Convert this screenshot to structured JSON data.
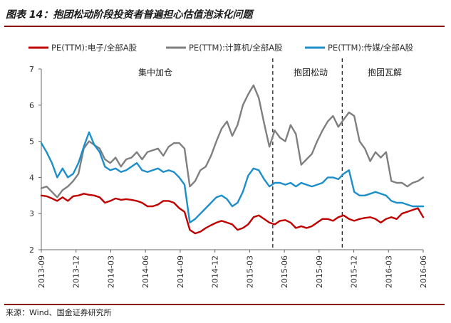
{
  "title": "图表 14：抱团松动阶段投资者普遍担心估值泡沫化问题",
  "source": "来源：Wind、国金证券研究所",
  "chart_data": {
    "type": "line",
    "ylim": [
      2,
      7
    ],
    "y_ticks": [
      "2",
      "3",
      "4",
      "5",
      "6",
      "7"
    ],
    "x_ticks": [
      "2013-09",
      "2013-12",
      "2014-03",
      "2014-06",
      "2014-09",
      "2014-12",
      "2015-03",
      "2015-06",
      "2015-09",
      "2015-12",
      "2016-03",
      "2016-06"
    ],
    "region_labels": [
      "集中加仓",
      "抱团松动",
      "抱团瓦解"
    ],
    "divider_dates": [
      "2015-05",
      "2015-11"
    ],
    "series": [
      {
        "name": "PE(TTM):电子/全部A股",
        "color": "#c00000",
        "values": [
          3.5,
          3.48,
          3.42,
          3.35,
          3.45,
          3.35,
          3.48,
          3.5,
          3.55,
          3.52,
          3.5,
          3.45,
          3.3,
          3.35,
          3.42,
          3.38,
          3.4,
          3.38,
          3.35,
          3.3,
          3.2,
          3.2,
          3.25,
          3.35,
          3.35,
          3.3,
          3.15,
          3.05,
          2.55,
          2.45,
          2.5,
          2.6,
          2.68,
          2.75,
          2.8,
          2.75,
          2.7,
          2.55,
          2.6,
          2.7,
          2.9,
          2.95,
          2.85,
          2.75,
          2.7,
          2.8,
          2.82,
          2.75,
          2.6,
          2.65,
          2.6,
          2.65,
          2.75,
          2.85,
          2.85,
          2.8,
          2.9,
          2.95,
          2.85,
          2.8,
          2.85,
          2.88,
          2.9,
          2.85,
          2.75,
          2.85,
          2.9,
          2.85,
          3.0,
          3.05,
          3.1,
          3.15,
          2.9
        ]
      },
      {
        "name": "PE(TTM):计算机/全部A股",
        "color": "#7f7f7f",
        "values": [
          3.7,
          3.75,
          3.6,
          3.45,
          3.65,
          3.75,
          3.9,
          4.1,
          4.8,
          5.0,
          4.9,
          4.8,
          4.5,
          4.4,
          4.55,
          4.3,
          4.5,
          4.55,
          4.7,
          4.5,
          4.7,
          4.75,
          4.8,
          4.6,
          4.85,
          4.95,
          4.95,
          4.8,
          3.75,
          3.9,
          4.2,
          4.3,
          4.6,
          5.0,
          5.35,
          5.55,
          5.15,
          5.45,
          6.0,
          6.3,
          6.55,
          6.2,
          5.5,
          4.85,
          5.3,
          5.1,
          5.0,
          5.45,
          5.2,
          4.35,
          4.5,
          4.65,
          5.0,
          5.3,
          5.55,
          5.7,
          5.4,
          5.6,
          5.8,
          5.7,
          5.0,
          4.8,
          4.45,
          4.7,
          4.55,
          4.7,
          3.9,
          3.85,
          3.85,
          3.75,
          3.85,
          3.9,
          4.0
        ]
      },
      {
        "name": "PE(TTM):传媒/全部A股",
        "color": "#1c8ec9",
        "values": [
          4.95,
          4.7,
          4.4,
          4.0,
          4.25,
          4.0,
          4.1,
          4.4,
          4.85,
          5.25,
          4.9,
          4.7,
          4.3,
          4.2,
          4.25,
          4.15,
          4.2,
          4.3,
          4.4,
          4.2,
          4.15,
          4.2,
          4.25,
          4.15,
          4.2,
          4.15,
          4.0,
          3.8,
          2.75,
          2.85,
          3.0,
          3.15,
          3.3,
          3.45,
          3.5,
          3.4,
          3.2,
          3.3,
          3.6,
          4.05,
          4.25,
          4.2,
          3.95,
          3.75,
          3.85,
          3.85,
          3.8,
          3.85,
          3.75,
          3.85,
          3.8,
          3.75,
          3.8,
          3.85,
          4.0,
          4.0,
          3.95,
          4.1,
          4.2,
          3.6,
          3.5,
          3.5,
          3.55,
          3.6,
          3.55,
          3.5,
          3.35,
          3.3,
          3.3,
          3.25,
          3.2,
          3.2,
          3.2
        ]
      }
    ]
  }
}
